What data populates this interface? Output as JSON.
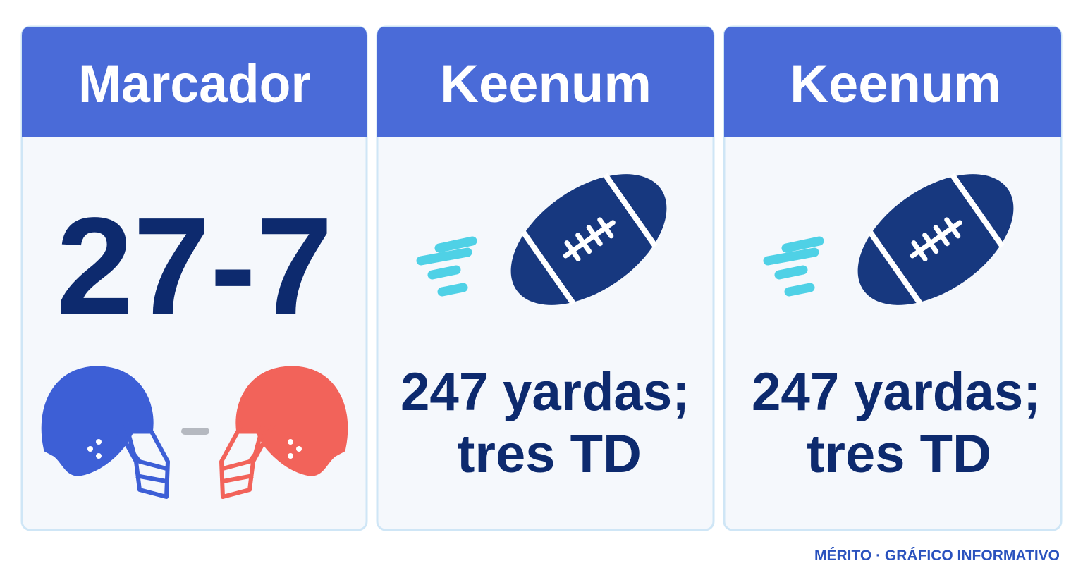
{
  "cards": [
    {
      "header": "Marcador",
      "score": "27-7"
    },
    {
      "header": "Keenum",
      "lines": [
        "247 yardas;",
        "tres TD"
      ]
    },
    {
      "header": "Keenum",
      "lines": [
        "247 yardas;",
        "tres TD"
      ]
    }
  ],
  "footer": "MÉRITO · GRÁFICO INFORMATIVO"
}
